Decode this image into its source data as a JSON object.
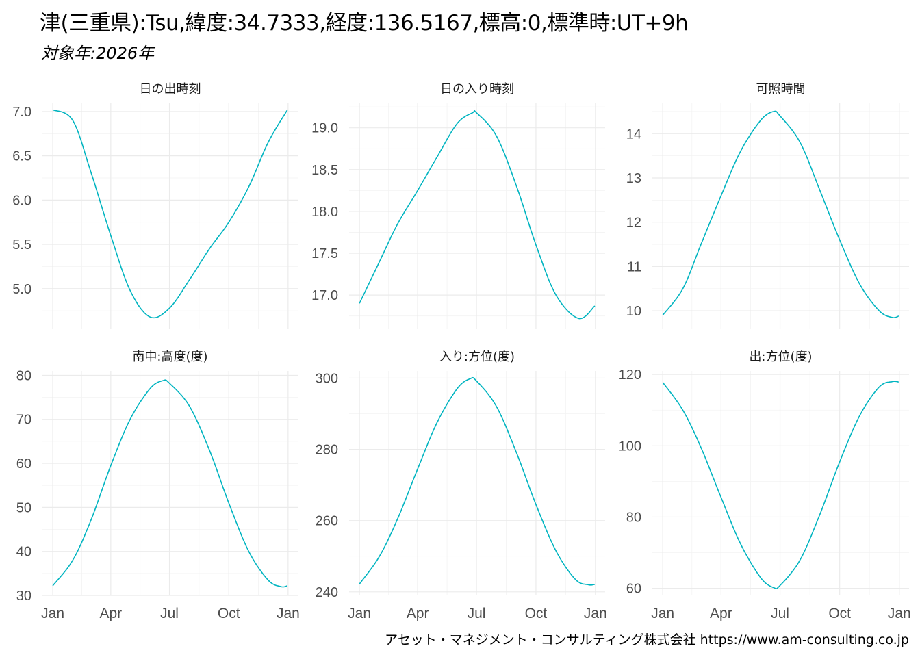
{
  "title": "津(三重県):Tsu,緯度:34.7333,経度:136.5167,標高:0,標準時:UT+9h",
  "subtitle": "対象年:2026年",
  "caption": "アセット・マネジメント・コンサルティング株式会社 https://www.am-consulting.co.jp",
  "chart_data": [
    {
      "type": "line",
      "title": "日の出時刻",
      "x": [
        "2026-01-01",
        "2026-02-01",
        "2026-03-01",
        "2026-04-01",
        "2026-05-01",
        "2026-06-01",
        "2026-07-01",
        "2026-08-01",
        "2026-09-01",
        "2026-10-01",
        "2026-11-01",
        "2026-12-01",
        "2026-12-31"
      ],
      "series": [
        {
          "values": [
            7.02,
            6.9,
            6.32,
            5.6,
            4.98,
            4.68,
            4.78,
            5.1,
            5.45,
            5.75,
            6.15,
            6.65,
            7.02
          ]
        }
      ],
      "x_ticks": [
        "Jan",
        "Apr",
        "Jul",
        "Oct",
        "Jan"
      ],
      "y_ticks": [
        "5.0",
        "5.5",
        "6.0",
        "6.5",
        "7.0"
      ],
      "ylim": [
        4.55,
        7.1
      ],
      "color": "#00b4c0"
    },
    {
      "type": "line",
      "title": "日の入り時刻",
      "x": [
        "2026-01-01",
        "2026-02-01",
        "2026-03-01",
        "2026-04-01",
        "2026-05-01",
        "2026-06-01",
        "2026-06-25",
        "2026-07-01",
        "2026-08-01",
        "2026-09-01",
        "2026-10-01",
        "2026-11-01",
        "2026-12-06",
        "2026-12-31"
      ],
      "series": [
        {
          "values": [
            16.9,
            17.4,
            17.85,
            18.25,
            18.65,
            19.05,
            19.18,
            19.18,
            18.9,
            18.3,
            17.6,
            17.0,
            16.72,
            16.87
          ]
        }
      ],
      "x_ticks": [
        "Jan",
        "Apr",
        "Jul",
        "Oct",
        "Jan"
      ],
      "y_ticks": [
        "17.0",
        "17.5",
        "18.0",
        "18.5",
        "19.0"
      ],
      "ylim": [
        16.6,
        19.3
      ],
      "color": "#00b4c0"
    },
    {
      "type": "line",
      "title": "可照時間",
      "x": [
        "2026-01-01",
        "2026-02-01",
        "2026-03-01",
        "2026-04-01",
        "2026-05-01",
        "2026-06-01",
        "2026-06-21",
        "2026-07-01",
        "2026-08-01",
        "2026-09-01",
        "2026-10-01",
        "2026-11-01",
        "2026-12-01",
        "2026-12-21",
        "2026-12-31"
      ],
      "series": [
        {
          "values": [
            9.9,
            10.5,
            11.5,
            12.6,
            13.6,
            14.3,
            14.5,
            14.4,
            13.8,
            12.7,
            11.6,
            10.6,
            10.0,
            9.85,
            9.88
          ]
        }
      ],
      "x_ticks": [
        "Jan",
        "Apr",
        "Jul",
        "Oct",
        "Jan"
      ],
      "y_ticks": [
        "10",
        "11",
        "12",
        "13",
        "14"
      ],
      "ylim": [
        9.6,
        14.7
      ],
      "color": "#00b4c0"
    },
    {
      "type": "line",
      "title": "南中:高度(度)",
      "x": [
        "2026-01-01",
        "2026-02-01",
        "2026-03-01",
        "2026-04-01",
        "2026-05-01",
        "2026-06-01",
        "2026-06-21",
        "2026-07-01",
        "2026-08-01",
        "2026-09-01",
        "2026-10-01",
        "2026-11-01",
        "2026-12-01",
        "2026-12-21",
        "2026-12-31"
      ],
      "series": [
        {
          "values": [
            32.2,
            38.0,
            47.0,
            59.5,
            70.0,
            77.0,
            78.8,
            78.2,
            73.0,
            63.0,
            51.0,
            40.0,
            33.5,
            32.0,
            32.2
          ]
        }
      ],
      "x_ticks": [
        "Jan",
        "Apr",
        "Jul",
        "Oct",
        "Jan"
      ],
      "y_ticks": [
        "30",
        "40",
        "50",
        "60",
        "70",
        "80"
      ],
      "ylim": [
        30,
        81
      ],
      "color": "#00b4c0"
    },
    {
      "type": "line",
      "title": "入り:方位(度)",
      "x": [
        "2026-01-01",
        "2026-02-01",
        "2026-03-01",
        "2026-04-01",
        "2026-05-01",
        "2026-06-01",
        "2026-06-21",
        "2026-07-01",
        "2026-08-01",
        "2026-09-01",
        "2026-10-01",
        "2026-11-01",
        "2026-12-01",
        "2026-12-21",
        "2026-12-31"
      ],
      "series": [
        {
          "values": [
            242.2,
            250.0,
            260.5,
            274.5,
            287.5,
            297.0,
            299.8,
            299.2,
            292.0,
            279.0,
            264.5,
            251.5,
            243.5,
            242.0,
            242.1
          ]
        }
      ],
      "x_ticks": [
        "Jan",
        "Apr",
        "Jul",
        "Oct",
        "Jan"
      ],
      "y_ticks": [
        "240",
        "260",
        "280",
        "300"
      ],
      "ylim": [
        239,
        302
      ],
      "color": "#00b4c0"
    },
    {
      "type": "line",
      "title": "出:方位(度)",
      "x": [
        "2026-01-01",
        "2026-02-01",
        "2026-03-01",
        "2026-04-01",
        "2026-05-01",
        "2026-06-01",
        "2026-06-21",
        "2026-07-01",
        "2026-08-01",
        "2026-09-01",
        "2026-10-01",
        "2026-11-01",
        "2026-12-01",
        "2026-12-21",
        "2026-12-31"
      ],
      "series": [
        {
          "values": [
            117.8,
            110.0,
            99.5,
            85.5,
            72.5,
            63.0,
            60.2,
            60.8,
            68.0,
            81.0,
            95.5,
            108.5,
            116.5,
            118.0,
            117.9
          ]
        }
      ],
      "x_ticks": [
        "Jan",
        "Apr",
        "Jul",
        "Oct",
        "Jan"
      ],
      "y_ticks": [
        "60",
        "80",
        "100",
        "120"
      ],
      "ylim": [
        58,
        121
      ],
      "color": "#00b4c0"
    }
  ]
}
